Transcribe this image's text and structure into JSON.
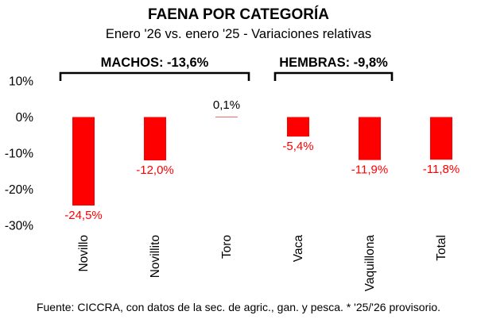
{
  "chart_data": {
    "type": "bar",
    "title": "FAENA POR CATEGORÍA",
    "subtitle": "Enero '26 vs. enero '25 - Variaciones relativas",
    "categories": [
      "Novillo",
      "Novillito",
      "Toro",
      "Vaca",
      "Vaquillona",
      "Total"
    ],
    "values": [
      -24.5,
      -12.0,
      0.1,
      -5.4,
      -11.9,
      -11.8
    ],
    "data_labels": [
      "-24,5%",
      "-12,0%",
      "0,1%",
      "-5,4%",
      "-11,9%",
      "-11,8%"
    ],
    "yticks": [
      10,
      0,
      -10,
      -20,
      -30
    ],
    "ytick_labels": [
      "10%",
      "0%",
      "-10%",
      "-20%",
      "-30%"
    ],
    "ylim": [
      -30,
      10
    ],
    "bar_color": "#ff0000",
    "negative_label_color": "#ff0000",
    "positive_label_color": "#000000",
    "groups": [
      {
        "label": "MACHOS: -13,6%",
        "start": 0,
        "end": 2
      },
      {
        "label": "HEMBRAS: -9,8%",
        "start": 3,
        "end": 4
      }
    ],
    "xlabel": "",
    "ylabel": "",
    "grid": false
  },
  "footer": "Fuente: CICCRA, con datos de la sec. de agric., gan. y pesca. * '25/'26 provisorio."
}
